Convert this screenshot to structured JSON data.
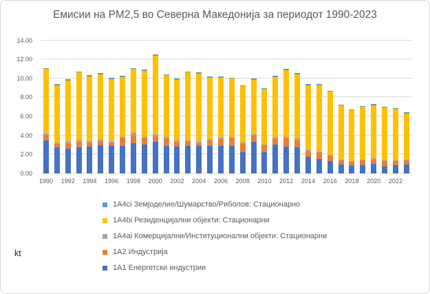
{
  "chart_data": {
    "type": "bar",
    "stacked": true,
    "title": "Емисии на PM2,5 во Северна Македонија за периодот 1990-2023",
    "unit_label": "kt",
    "ylim": [
      0,
      14
    ],
    "y_ticks": [
      "0.00",
      "2.00",
      "4.00",
      "6.00",
      "8.00",
      "10.00",
      "12.00",
      "14.00"
    ],
    "grid": "horizontal",
    "legend_position": "bottom-left",
    "categories": [
      1990,
      1991,
      1992,
      1993,
      1994,
      1995,
      1996,
      1997,
      1998,
      1999,
      2000,
      2001,
      2002,
      2003,
      2004,
      2005,
      2006,
      2007,
      2008,
      2009,
      2010,
      2011,
      2012,
      2013,
      2014,
      2015,
      2016,
      2017,
      2018,
      2019,
      2020,
      2021,
      2022,
      2023
    ],
    "x_tick_labels": [
      "1990",
      "1992",
      "1994",
      "1996",
      "1998",
      "2000",
      "2002",
      "2004",
      "2006",
      "2008",
      "2010",
      "2012",
      "2014",
      "2016",
      "2018",
      "2020",
      "2022"
    ],
    "series": [
      {
        "code": "1A1",
        "name": "1A1 Енергетски индустрии",
        "color": "#4472C4",
        "values": [
          3.45,
          2.7,
          2.6,
          2.75,
          2.8,
          2.95,
          2.85,
          2.9,
          3.15,
          3.05,
          3.3,
          2.9,
          2.8,
          2.9,
          2.9,
          2.85,
          2.85,
          2.85,
          2.2,
          3.3,
          2.25,
          3.05,
          2.8,
          2.7,
          1.7,
          1.5,
          1.25,
          0.9,
          0.75,
          0.85,
          1.0,
          0.7,
          0.85,
          0.9
        ]
      },
      {
        "code": "1A2",
        "name": "1A2 Индустрија",
        "color": "#ED7D31",
        "values": [
          0.6,
          0.4,
          0.55,
          0.55,
          0.45,
          0.45,
          0.35,
          0.75,
          0.85,
          0.6,
          0.6,
          0.7,
          0.5,
          0.4,
          0.3,
          0.6,
          0.75,
          0.8,
          0.9,
          0.65,
          0.7,
          0.6,
          0.85,
          0.85,
          0.6,
          0.7,
          0.6,
          0.45,
          0.45,
          0.5,
          0.45,
          0.55,
          0.4,
          0.45
        ]
      },
      {
        "code": "1A4ai",
        "name": "1A4ai Комерцијални/Институционални објекти: Стационарни",
        "color": "#A5A5A5",
        "values": [
          0.15,
          0.15,
          0.15,
          0.15,
          0.15,
          0.15,
          0.15,
          0.15,
          0.25,
          0.2,
          0.2,
          0.2,
          0.15,
          0.15,
          0.15,
          0.15,
          0.15,
          0.15,
          0.15,
          0.15,
          0.1,
          0.1,
          0.15,
          0.15,
          0.15,
          0.12,
          0.1,
          0.1,
          0.1,
          0.1,
          0.1,
          0.1,
          0.1,
          0.1
        ]
      },
      {
        "code": "1A4bi",
        "name": "1A4bi Резиденцијални објекти: Стационарни",
        "color": "#FFC000",
        "values": [
          6.78,
          6.03,
          6.48,
          7.18,
          6.83,
          6.88,
          6.58,
          6.33,
          6.73,
          6.93,
          8.28,
          6.53,
          6.43,
          7.18,
          7.18,
          6.48,
          6.33,
          6.18,
          5.93,
          5.78,
          5.83,
          6.38,
          7.08,
          6.73,
          6.83,
          6.96,
          6.63,
          5.68,
          5.33,
          5.53,
          5.63,
          5.58,
          5.43,
          4.83
        ]
      },
      {
        "code": "1A4ci",
        "name": "1A4ci Земјоделие/Шумарство/Риболов: Стационарно",
        "color": "#5B9BD5",
        "values": [
          0.12,
          0.12,
          0.12,
          0.12,
          0.12,
          0.12,
          0.12,
          0.12,
          0.12,
          0.12,
          0.12,
          0.12,
          0.12,
          0.12,
          0.12,
          0.12,
          0.12,
          0.12,
          0.12,
          0.12,
          0.12,
          0.12,
          0.12,
          0.12,
          0.12,
          0.12,
          0.12,
          0.12,
          0.12,
          0.12,
          0.12,
          0.12,
          0.12,
          0.12
        ]
      }
    ],
    "legend_order": [
      4,
      3,
      2,
      1,
      0
    ],
    "gridline_color": "#D9D9D9",
    "text_color": "#595959"
  }
}
